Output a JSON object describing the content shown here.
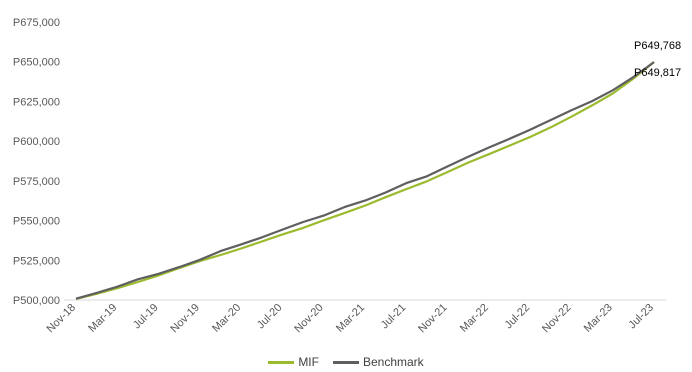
{
  "chart_data": {
    "type": "line",
    "title": "",
    "xlabel": "",
    "ylabel": "",
    "ylim": [
      500000,
      675000
    ],
    "y_ticks": [
      "P500,000",
      "P525,000",
      "P550,000",
      "P575,000",
      "P600,000",
      "P625,000",
      "P650,000",
      "P675,000"
    ],
    "y_tick_values": [
      500000,
      525000,
      550000,
      575000,
      600000,
      625000,
      650000,
      675000
    ],
    "x_tick_labels": [
      "Nov-18",
      "Mar-19",
      "Jul-19",
      "Nov-19",
      "Mar-20",
      "Jul-20",
      "Nov-20",
      "Mar-21",
      "Jul-21",
      "Nov-21",
      "Mar-22",
      "Jul-22",
      "Nov-22",
      "Mar-23",
      "Jul-23"
    ],
    "x": [
      "Nov-18",
      "Jan-19",
      "Mar-19",
      "May-19",
      "Jul-19",
      "Sep-19",
      "Nov-19",
      "Jan-20",
      "Mar-20",
      "May-20",
      "Jul-20",
      "Sep-20",
      "Nov-20",
      "Jan-21",
      "Mar-21",
      "May-21",
      "Jul-21",
      "Sep-21",
      "Nov-21",
      "Jan-22",
      "Mar-22",
      "May-22",
      "Jul-22",
      "Sep-22",
      "Nov-22",
      "Jan-23",
      "Mar-23",
      "May-23",
      "Jul-23"
    ],
    "series": [
      {
        "name": "MIF",
        "color": "#9bbb2f",
        "values": [
          500700,
          503900,
          507400,
          511300,
          515500,
          520100,
          524500,
          528300,
          532400,
          536800,
          541300,
          545400,
          550200,
          554700,
          559400,
          564700,
          569800,
          574700,
          580600,
          586500,
          591800,
          597200,
          602600,
          608700,
          615400,
          622500,
          630000,
          639400,
          649817
        ]
      },
      {
        "name": "Benchmark",
        "color": "#5f5f5f",
        "values": [
          500800,
          504500,
          508400,
          513000,
          516500,
          520700,
          525300,
          530800,
          535000,
          539400,
          544300,
          549100,
          553100,
          558500,
          562600,
          567700,
          573600,
          577900,
          584100,
          590200,
          596000,
          601500,
          607200,
          613300,
          619500,
          625200,
          632000,
          640300,
          649768
        ]
      }
    ],
    "annotations": [
      {
        "text": "P649,768",
        "series": "Benchmark"
      },
      {
        "text": "P649,817",
        "series": "MIF"
      }
    ],
    "grid": false,
    "legend_position": "bottom"
  }
}
